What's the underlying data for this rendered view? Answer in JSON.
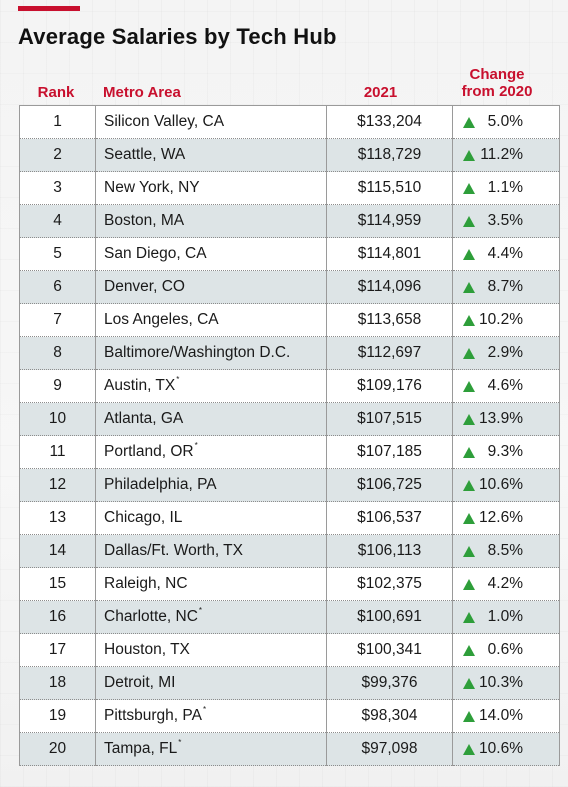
{
  "title": "Average Salaries by Tech Hub",
  "colors": {
    "accent": "#c8102e",
    "up_arrow": "#2e9e3a",
    "row_alt": "#dde4e6"
  },
  "headers": {
    "rank": "Rank",
    "metro": "Metro Area",
    "salary": "2021",
    "change_line1": "Change",
    "change_line2": "from 2020"
  },
  "chart_data": {
    "type": "table",
    "title": "Average Salaries by Tech Hub",
    "columns": [
      "Rank",
      "Metro Area",
      "2021",
      "Change from 2020"
    ],
    "rows": [
      {
        "rank": "1",
        "metro": "Silicon Valley, CA",
        "star": "",
        "salary": "$133,204",
        "change": "5.0%",
        "direction": "up"
      },
      {
        "rank": "2",
        "metro": "Seattle, WA",
        "star": "",
        "salary": "$118,729",
        "change": "11.2%",
        "direction": "up"
      },
      {
        "rank": "3",
        "metro": "New York, NY",
        "star": "",
        "salary": "$115,510",
        "change": "1.1%",
        "direction": "up"
      },
      {
        "rank": "4",
        "metro": "Boston, MA",
        "star": "",
        "salary": "$114,959",
        "change": "3.5%",
        "direction": "up"
      },
      {
        "rank": "5",
        "metro": "San Diego, CA",
        "star": "",
        "salary": "$114,801",
        "change": "4.4%",
        "direction": "up"
      },
      {
        "rank": "6",
        "metro": "Denver, CO",
        "star": "",
        "salary": "$114,096",
        "change": "8.7%",
        "direction": "up"
      },
      {
        "rank": "7",
        "metro": "Los Angeles, CA",
        "star": "",
        "salary": "$113,658",
        "change": "10.2%",
        "direction": "up"
      },
      {
        "rank": "8",
        "metro": "Baltimore/Washington D.C.",
        "star": "",
        "salary": "$112,697",
        "change": "2.9%",
        "direction": "up"
      },
      {
        "rank": "9",
        "metro": "Austin, TX",
        "star": "*",
        "salary": "$109,176",
        "change": "4.6%",
        "direction": "up"
      },
      {
        "rank": "10",
        "metro": "Atlanta, GA",
        "star": "",
        "salary": "$107,515",
        "change": "13.9%",
        "direction": "up"
      },
      {
        "rank": "11",
        "metro": "Portland, OR",
        "star": "*",
        "salary": "$107,185",
        "change": "9.3%",
        "direction": "up"
      },
      {
        "rank": "12",
        "metro": "Philadelphia, PA",
        "star": "",
        "salary": "$106,725",
        "change": "10.6%",
        "direction": "up"
      },
      {
        "rank": "13",
        "metro": "Chicago, IL",
        "star": "",
        "salary": "$106,537",
        "change": "12.6%",
        "direction": "up"
      },
      {
        "rank": "14",
        "metro": "Dallas/Ft. Worth, TX",
        "star": "",
        "salary": "$106,113",
        "change": "8.5%",
        "direction": "up"
      },
      {
        "rank": "15",
        "metro": "Raleigh, NC",
        "star": "",
        "salary": "$102,375",
        "change": "4.2%",
        "direction": "up"
      },
      {
        "rank": "16",
        "metro": "Charlotte, NC",
        "star": "*",
        "salary": "$100,691",
        "change": "1.0%",
        "direction": "up"
      },
      {
        "rank": "17",
        "metro": "Houston, TX",
        "star": "",
        "salary": "$100,341",
        "change": "0.6%",
        "direction": "up"
      },
      {
        "rank": "18",
        "metro": "Detroit, MI",
        "star": "",
        "salary": "$99,376",
        "change": "10.3%",
        "direction": "up"
      },
      {
        "rank": "19",
        "metro": "Pittsburgh, PA",
        "star": "*",
        "salary": "$98,304",
        "change": "14.0%",
        "direction": "up"
      },
      {
        "rank": "20",
        "metro": "Tampa, FL",
        "star": "*",
        "salary": "$97,098",
        "change": "10.6%",
        "direction": "up"
      }
    ]
  }
}
